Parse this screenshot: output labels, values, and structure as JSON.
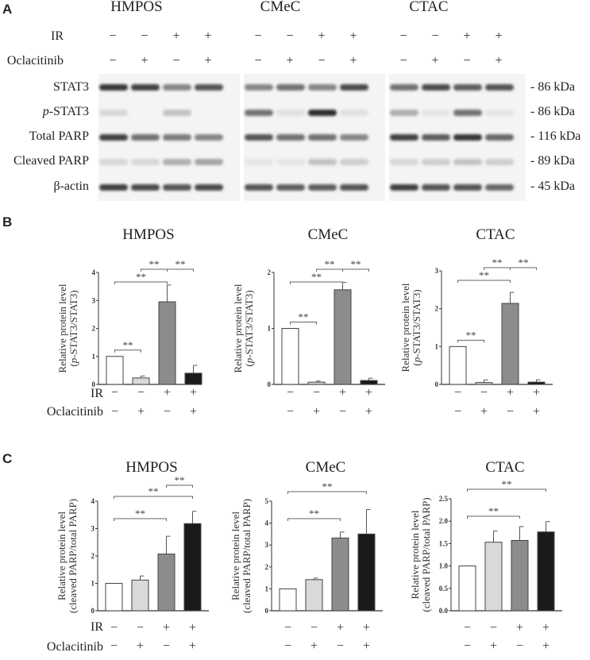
{
  "panels": {
    "A": {
      "letter": "A",
      "cell_lines": [
        "HMPOS",
        "CMeC",
        "CTAC"
      ],
      "condition_labels": {
        "ir": "IR",
        "oclacitinib": "Oclacitinib"
      },
      "ir_signs": [
        "−",
        "−",
        "+",
        "+"
      ],
      "ocla_signs": [
        "−",
        "+",
        "−",
        "+"
      ],
      "rows": [
        {
          "label": "STAT3",
          "kda": "- 86 kDa"
        },
        {
          "label": "p-STAT3",
          "kda": "- 86 kDa"
        },
        {
          "label": "Total PARP",
          "kda": "- 116 kDa"
        },
        {
          "label": "Cleaved PARP",
          "kda": "- 89 kDa"
        },
        {
          "label": "β-actin",
          "kda": "- 45 kDa"
        }
      ]
    },
    "B": {
      "letter": "B"
    },
    "C": {
      "letter": "C"
    }
  },
  "chart_data": [
    {
      "panel": "B",
      "type": "bar",
      "title": "HMPOS",
      "ylabel": "Relative protein level (p-STAT3/STAT3)",
      "ylim": [
        0,
        4
      ],
      "yticks": [
        "0",
        "1",
        "2",
        "3",
        "4"
      ],
      "categories": [
        "IR−/Ocla−",
        "IR−/Ocla+",
        "IR+/Ocla−",
        "IR+/Ocla+"
      ],
      "values": [
        1.0,
        0.23,
        2.95,
        0.4
      ],
      "errors": [
        0,
        0.07,
        0.6,
        0.28
      ],
      "significance": [
        {
          "pair": [
            0,
            1
          ],
          "label": "**"
        },
        {
          "pair": [
            0,
            2
          ],
          "label": "**"
        },
        {
          "pair": [
            1,
            2
          ],
          "label": "**"
        },
        {
          "pair": [
            2,
            3
          ],
          "label": "**"
        }
      ],
      "ir": [
        "−",
        "−",
        "+",
        "+"
      ],
      "oclacitinib": [
        "−",
        "+",
        "−",
        "+"
      ]
    },
    {
      "panel": "B",
      "type": "bar",
      "title": "CMeC",
      "ylabel": "Relative protein level (p-STAT3/STAT3)",
      "ylim": [
        0,
        2
      ],
      "yticks": [
        "0",
        "1",
        "2"
      ],
      "categories": [
        "IR−/Ocla−",
        "IR−/Ocla+",
        "IR+/Ocla−",
        "IR+/Ocla+"
      ],
      "values": [
        1.0,
        0.04,
        1.69,
        0.07
      ],
      "errors": [
        0,
        0.02,
        0.13,
        0.04
      ],
      "significance": [
        {
          "pair": [
            0,
            1
          ],
          "label": "**"
        },
        {
          "pair": [
            0,
            2
          ],
          "label": "**"
        },
        {
          "pair": [
            1,
            2
          ],
          "label": "**"
        },
        {
          "pair": [
            2,
            3
          ],
          "label": "**"
        }
      ],
      "ir": [
        "−",
        "−",
        "+",
        "+"
      ],
      "oclacitinib": [
        "−",
        "+",
        "−",
        "+"
      ]
    },
    {
      "panel": "B",
      "type": "bar",
      "title": "CTAC",
      "ylabel": "Relative protein level (p-STAT3/STAT3)",
      "ylim": [
        0,
        3
      ],
      "yticks": [
        "0",
        "1",
        "2",
        "3"
      ],
      "categories": [
        "IR−/Ocla−",
        "IR−/Ocla+",
        "IR+/Ocla−",
        "IR+/Ocla+"
      ],
      "values": [
        1.0,
        0.05,
        2.14,
        0.06
      ],
      "errors": [
        0,
        0.07,
        0.29,
        0.06
      ],
      "significance": [
        {
          "pair": [
            0,
            1
          ],
          "label": "**"
        },
        {
          "pair": [
            0,
            2
          ],
          "label": "**"
        },
        {
          "pair": [
            1,
            2
          ],
          "label": "**"
        },
        {
          "pair": [
            2,
            3
          ],
          "label": "**"
        }
      ],
      "ir": [
        "−",
        "−",
        "+",
        "+"
      ],
      "oclacitinib": [
        "−",
        "+",
        "−",
        "+"
      ]
    },
    {
      "panel": "C",
      "type": "bar",
      "title": "HMPOS",
      "ylabel": "Relative protein level (cleaved PARP/total PARP)",
      "ylim": [
        0,
        4
      ],
      "yticks": [
        "0",
        "1",
        "2",
        "3",
        "4"
      ],
      "categories": [
        "IR−/Ocla−",
        "IR−/Ocla+",
        "IR+/Ocla−",
        "IR+/Ocla+"
      ],
      "values": [
        1.0,
        1.12,
        2.07,
        3.18
      ],
      "errors": [
        0,
        0.15,
        0.65,
        0.45
      ],
      "significance": [
        {
          "pair": [
            0,
            2
          ],
          "label": "**"
        },
        {
          "pair": [
            0,
            3
          ],
          "label": "**"
        },
        {
          "pair": [
            2,
            3
          ],
          "label": "**"
        }
      ],
      "ir": [
        "−",
        "−",
        "+",
        "+"
      ],
      "oclacitinib": [
        "−",
        "+",
        "−",
        "+"
      ]
    },
    {
      "panel": "C",
      "type": "bar",
      "title": "CMeC",
      "ylabel": "Relative protein level (cleaved PARP/total PARP)",
      "ylim": [
        0,
        5
      ],
      "yticks": [
        "0",
        "1",
        "2",
        "3",
        "4",
        "5"
      ],
      "categories": [
        "IR−/Ocla−",
        "IR−/Ocla+",
        "IR+/Ocla−",
        "IR+/Ocla+"
      ],
      "values": [
        1.0,
        1.42,
        3.32,
        3.5
      ],
      "errors": [
        0,
        0.07,
        0.27,
        1.12
      ],
      "significance": [
        {
          "pair": [
            0,
            2
          ],
          "label": "**"
        },
        {
          "pair": [
            0,
            3
          ],
          "label": "**"
        }
      ],
      "ir": [
        "−",
        "−",
        "+",
        "+"
      ],
      "oclacitinib": [
        "−",
        "+",
        "−",
        "+"
      ]
    },
    {
      "panel": "C",
      "type": "bar",
      "title": "CTAC",
      "ylabel": "Relative protein level (cleaved PARP/total PARP)",
      "ylim": [
        0,
        2.5
      ],
      "yticks": [
        "0.0",
        "0.5",
        "1.0",
        "1.5",
        "2.0",
        "2.5"
      ],
      "categories": [
        "IR−/Ocla−",
        "IR−/Ocla+",
        "IR+/Ocla−",
        "IR+/Ocla+"
      ],
      "values": [
        1.0,
        1.53,
        1.57,
        1.76
      ],
      "errors": [
        0,
        0.25,
        0.31,
        0.23
      ],
      "significance": [
        {
          "pair": [
            0,
            2
          ],
          "label": "**"
        },
        {
          "pair": [
            0,
            3
          ],
          "label": "**"
        }
      ],
      "ir": [
        "−",
        "−",
        "+",
        "+"
      ],
      "oclacitinib": [
        "−",
        "+",
        "−",
        "+"
      ]
    }
  ],
  "bar_colors": [
    "#ffffff",
    "#d9d9d9",
    "#8c8c8c",
    "#1a1a1a"
  ]
}
